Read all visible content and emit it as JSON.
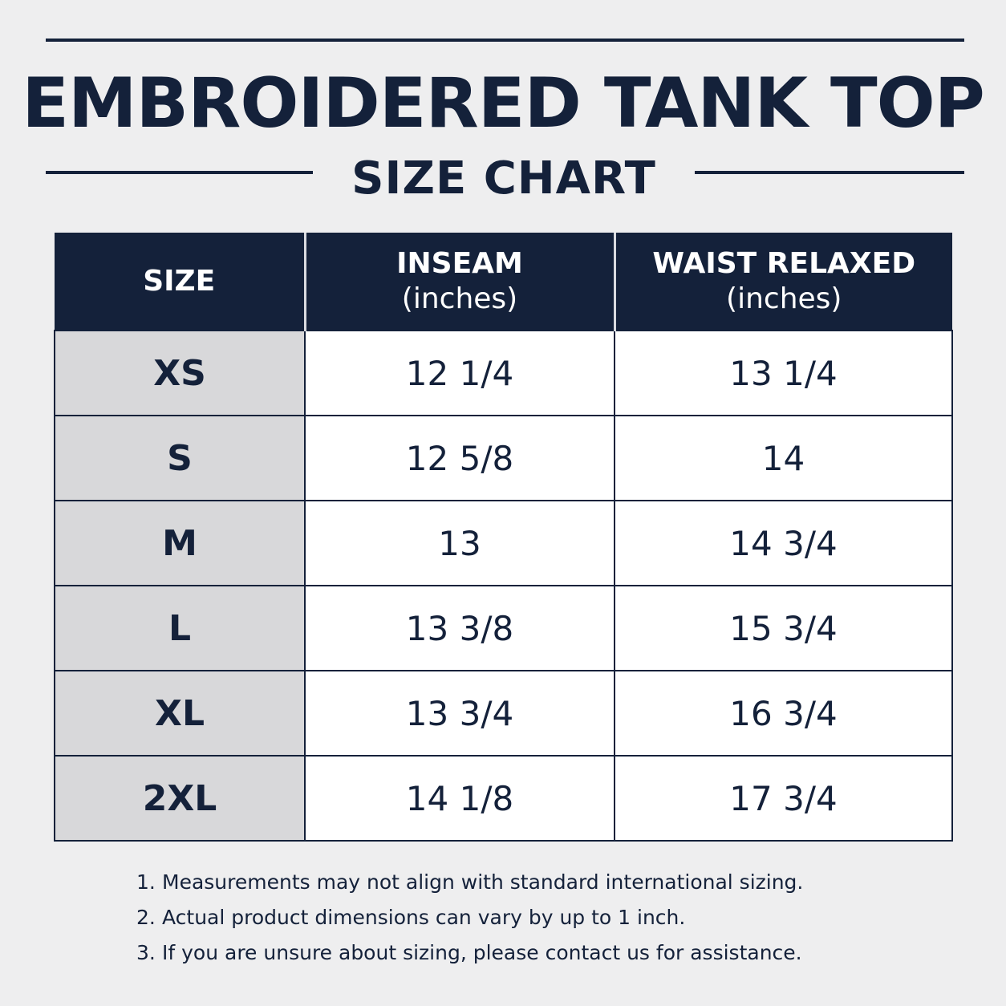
{
  "title": "EMBROIDERED TANK TOP",
  "subtitle": "SIZE CHART",
  "colors": {
    "navy": "#14213a",
    "background": "#eeeeef",
    "size_column": "#d8d8da",
    "cell": "#ffffff"
  },
  "table": {
    "headers": [
      {
        "label": "SIZE",
        "unit": ""
      },
      {
        "label": "INSEAM",
        "unit": "(inches)"
      },
      {
        "label": "WAIST RELAXED",
        "unit": "(inches)"
      }
    ],
    "rows": [
      {
        "size": "XS",
        "inseam": "12 1/4",
        "waist": "13 1/4"
      },
      {
        "size": "S",
        "inseam": "12 5/8",
        "waist": "14"
      },
      {
        "size": "M",
        "inseam": "13",
        "waist": "14 3/4"
      },
      {
        "size": "L",
        "inseam": "13 3/8",
        "waist": "15 3/4"
      },
      {
        "size": "XL",
        "inseam": "13 3/4",
        "waist": "16 3/4"
      },
      {
        "size": "2XL",
        "inseam": "14 1/8",
        "waist": "17 3/4"
      }
    ]
  },
  "notes": [
    {
      "num": "1.",
      "text": "Measurements may not align with standard international sizing."
    },
    {
      "num": "2.",
      "text": "Actual product dimensions can vary by up to 1 inch."
    },
    {
      "num": "3.",
      "text": "If you are unsure about sizing, please contact us for assistance."
    }
  ]
}
